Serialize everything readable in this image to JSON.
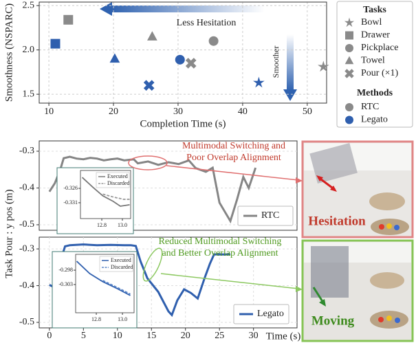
{
  "chart_data": [
    {
      "type": "scatter",
      "xlabel": "Completion Time (s)",
      "ylabel": "Smoothness (NSPARC)",
      "xlim": [
        8.5,
        53
      ],
      "ylim": [
        1.4,
        2.54
      ],
      "xticks": [
        10,
        20,
        30,
        40,
        50
      ],
      "yticks": [
        1.5,
        {
          "value": 2,
          "label": "2.0"
        },
        2.5
      ],
      "grid": true,
      "annotations": [
        "Less Hesitation",
        "Smoother"
      ],
      "legend_titles": [
        "Tasks",
        "Methods"
      ],
      "tasks": [
        {
          "name": "Bowl",
          "shape": "star"
        },
        {
          "name": "Drawer",
          "shape": "square"
        },
        {
          "name": "Pickplace",
          "shape": "circle"
        },
        {
          "name": "Towel",
          "shape": "triangle"
        },
        {
          "name": "Pour (×1)",
          "shape": "cross"
        }
      ],
      "series": [
        {
          "name": "RTC",
          "color": "#8a8a8a",
          "shapes": [
            "star",
            "square",
            "circle",
            "triangle",
            "cross"
          ],
          "x": [
            52.5,
            13,
            35.5,
            26,
            32
          ],
          "values": [
            1.81,
            2.34,
            2.1,
            2.15,
            1.85
          ]
        },
        {
          "name": "Legato",
          "color": "#2f5fae",
          "shapes": [
            "star",
            "square",
            "circle",
            "triangle",
            "cross"
          ],
          "x": [
            42.5,
            11,
            30.3,
            20.2,
            25.5
          ],
          "values": [
            1.63,
            2.07,
            1.89,
            1.9,
            1.6
          ]
        }
      ]
    },
    {
      "type": "line",
      "ylabel": "Task Pour : y pos (m)",
      "xlim": [
        -1.5,
        36.4
      ],
      "ylim": [
        -0.515,
        -0.272
      ],
      "yticks": [
        -0.3,
        -0.4,
        -0.5
      ],
      "grid": true,
      "annotation": "Multimodal Switching and Poor Overlap Alignment",
      "annotation_color": "#c0392b",
      "photo_label": "Hesitation",
      "series": [
        {
          "name": "RTC",
          "color": "#858585",
          "x": [
            0,
            0.8,
            1.6,
            2.1,
            3,
            4,
            5,
            6,
            7,
            8,
            9,
            10,
            11,
            12.4,
            13,
            14.5,
            16,
            17.5,
            19,
            20.5,
            21.5,
            23,
            24,
            25,
            26.6,
            27.6,
            28.5,
            29.3,
            30.3
          ],
          "values": [
            -0.41,
            -0.387,
            -0.35,
            -0.319,
            -0.315,
            -0.32,
            -0.322,
            -0.318,
            -0.32,
            -0.325,
            -0.322,
            -0.32,
            -0.325,
            -0.322,
            -0.333,
            -0.328,
            -0.337,
            -0.33,
            -0.335,
            -0.325,
            -0.346,
            -0.356,
            -0.345,
            -0.44,
            -0.49,
            -0.43,
            -0.37,
            -0.4,
            -0.345
          ]
        }
      ],
      "inset": {
        "xlim": [
          12.593,
          13.08
        ],
        "ylim": [
          -0.3365,
          -0.3198
        ],
        "xticks": [
          12.8,
          {
            "value": 13,
            "label": "13.0"
          }
        ],
        "yticks": [
          -0.326,
          -0.331
        ],
        "series": [
          {
            "name": "Executed",
            "color": "#777",
            "dash": false,
            "x": [
              12.61,
              12.71,
              12.81,
              12.91,
              12.98,
              13.07
            ],
            "values": [
              -0.3222,
              -0.3255,
              -0.3286,
              -0.3305,
              -0.3322,
              -0.3317
            ]
          },
          {
            "name": "Discarded",
            "color": "#999",
            "dash": true,
            "x": [
              12.81,
              12.91,
              13.01,
              13.07
            ],
            "values": [
              -0.328,
              -0.329,
              -0.3298,
              -0.3298
            ]
          }
        ]
      }
    },
    {
      "type": "line",
      "xlabel": "Time (s)",
      "xlim": [
        -1.5,
        36.4
      ],
      "ylim": [
        -0.515,
        -0.268
      ],
      "xticks": [
        0,
        5,
        10,
        15,
        20,
        25,
        30
      ],
      "yticks": [
        -0.3,
        -0.4,
        -0.5
      ],
      "grid": true,
      "annotation": "Reduced Multimodal Switching and Better Overlap Alignment",
      "annotation_color": "#4f9a1f",
      "photo_label": "Moving",
      "series": [
        {
          "name": "Legato",
          "color": "#2f5fae",
          "x": [
            0,
            0.8,
            1.6,
            2.3,
            3,
            5,
            7,
            9,
            11,
            12,
            12.7,
            13.4,
            14.4,
            16,
            17.5,
            18,
            18.8,
            19.8,
            20.8,
            21.8,
            22.8,
            23.6,
            24.2,
            24.8,
            26.6
          ],
          "values": [
            -0.398,
            -0.405,
            -0.334,
            -0.293,
            -0.29,
            -0.288,
            -0.29,
            -0.289,
            -0.29,
            -0.29,
            -0.292,
            -0.334,
            -0.38,
            -0.417,
            -0.47,
            -0.48,
            -0.44,
            -0.41,
            -0.42,
            -0.435,
            -0.38,
            -0.34,
            -0.315,
            -0.315,
            -0.315
          ]
        }
      ],
      "inset": {
        "xlim": [
          12.642,
          13.089
        ],
        "ylim": [
          -0.3128,
          -0.2925
        ],
        "xticks": [
          12.8,
          {
            "value": 13,
            "label": "13.0"
          }
        ],
        "yticks": [
          -0.298,
          -0.303
        ],
        "series": [
          {
            "name": "Executed",
            "color": "#2f5fae",
            "dash": false,
            "x": [
              12.65,
              12.75,
              12.85,
              12.96,
              13.06
            ],
            "values": [
              -0.2949,
              -0.2992,
              -0.302,
              -0.3044,
              -0.3068
            ]
          },
          {
            "name": "Discarded",
            "color": "#5a86c8",
            "dash": true,
            "x": [
              12.85,
              12.96,
              13.06
            ],
            "values": [
              -0.3016,
              -0.304,
              -0.3063
            ]
          }
        ]
      }
    }
  ]
}
